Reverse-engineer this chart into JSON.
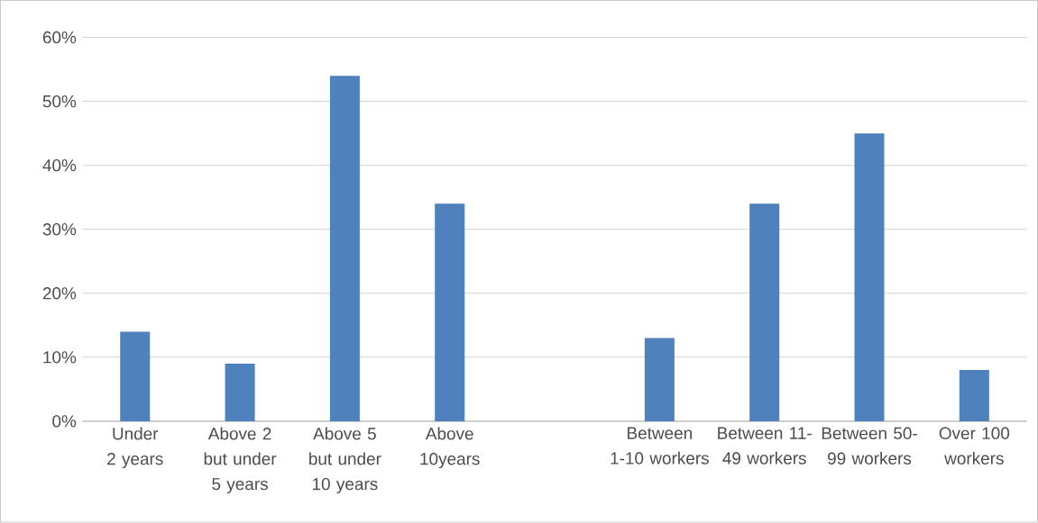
{
  "chart_data": {
    "type": "bar",
    "categories": [
      "Under 2 years",
      "Above 2 but under 5 years",
      "Above 5 but under 10 years",
      "Above 10years",
      null,
      "Between 1-10 workers",
      "Between 11-49 workers",
      "Between 50-99 workers",
      "Over 100 workers"
    ],
    "values": [
      14,
      9,
      54,
      34,
      null,
      13,
      34,
      45,
      8
    ],
    "color": "#4f81bd",
    "ylim": [
      0,
      60
    ],
    "yticks": [
      {
        "value": 0,
        "label": "0%"
      },
      {
        "value": 10,
        "label": "10%"
      },
      {
        "value": 20,
        "label": "20%"
      },
      {
        "value": 30,
        "label": "30%"
      },
      {
        "value": 40,
        "label": "40%"
      },
      {
        "value": 50,
        "label": "50%"
      },
      {
        "value": 60,
        "label": "60%"
      }
    ],
    "grid": "y"
  }
}
